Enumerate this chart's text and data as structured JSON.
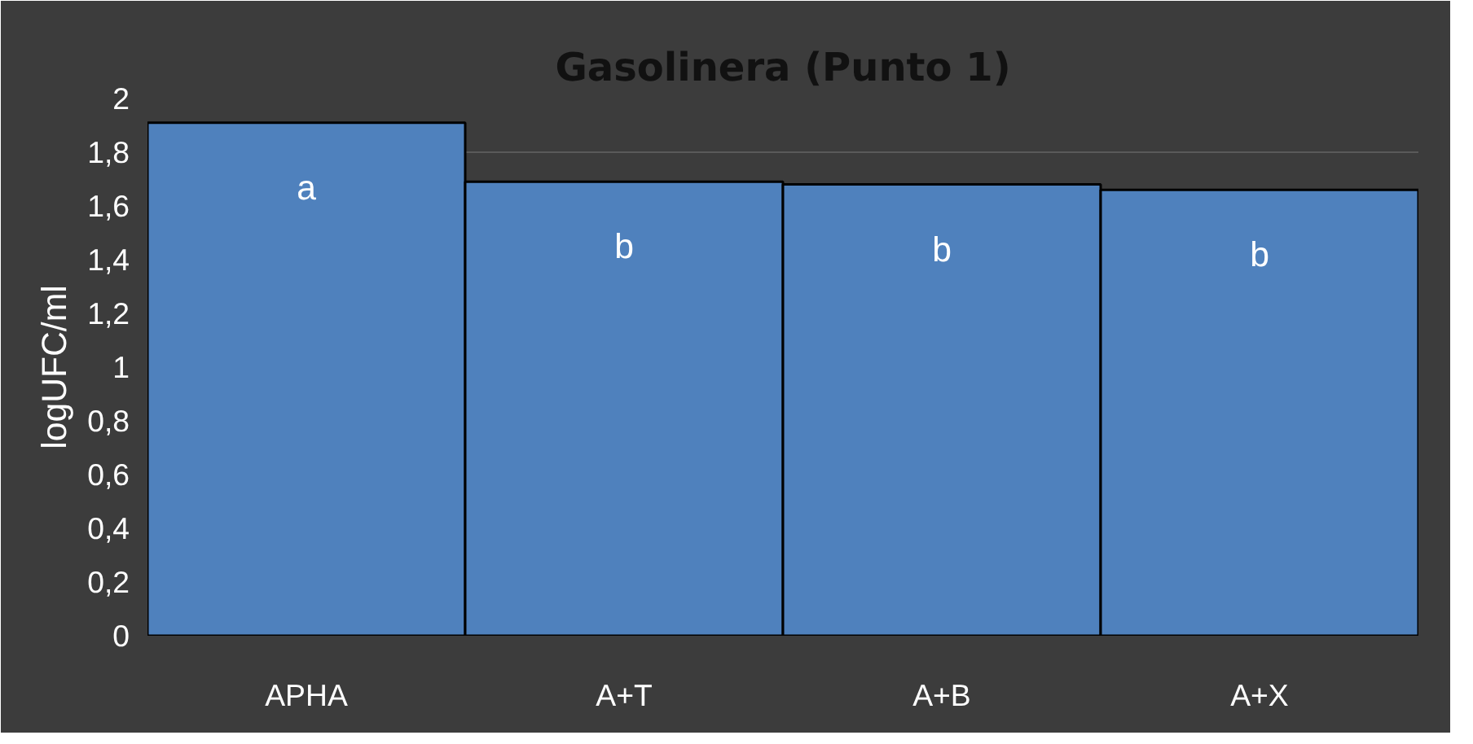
{
  "chart_data": {
    "type": "bar",
    "title": "Gasolinera (Punto 1)",
    "ylabel": "logUFC/ml",
    "categories": [
      "APHA",
      "A+T",
      "A+B",
      "A+X"
    ],
    "values": [
      1.91,
      1.69,
      1.68,
      1.66
    ],
    "color": "#4f81bd",
    "ylim": [
      0,
      2
    ],
    "yticks": [
      0,
      {
        "value": 0.2,
        "label": "0,2"
      },
      {
        "value": 0.4,
        "label": "0,4"
      },
      {
        "value": 0.6,
        "label": "0,6"
      },
      {
        "value": 0.8,
        "label": "0,8"
      },
      1,
      {
        "value": 1.2,
        "label": "1,2"
      },
      {
        "value": 1.4,
        "label": "1,4"
      },
      {
        "value": 1.6,
        "label": "1,6"
      },
      {
        "value": 1.8,
        "label": "1,8"
      },
      2
    ],
    "grid": "y",
    "annotations": [
      "a",
      "b",
      "b",
      "b"
    ]
  }
}
